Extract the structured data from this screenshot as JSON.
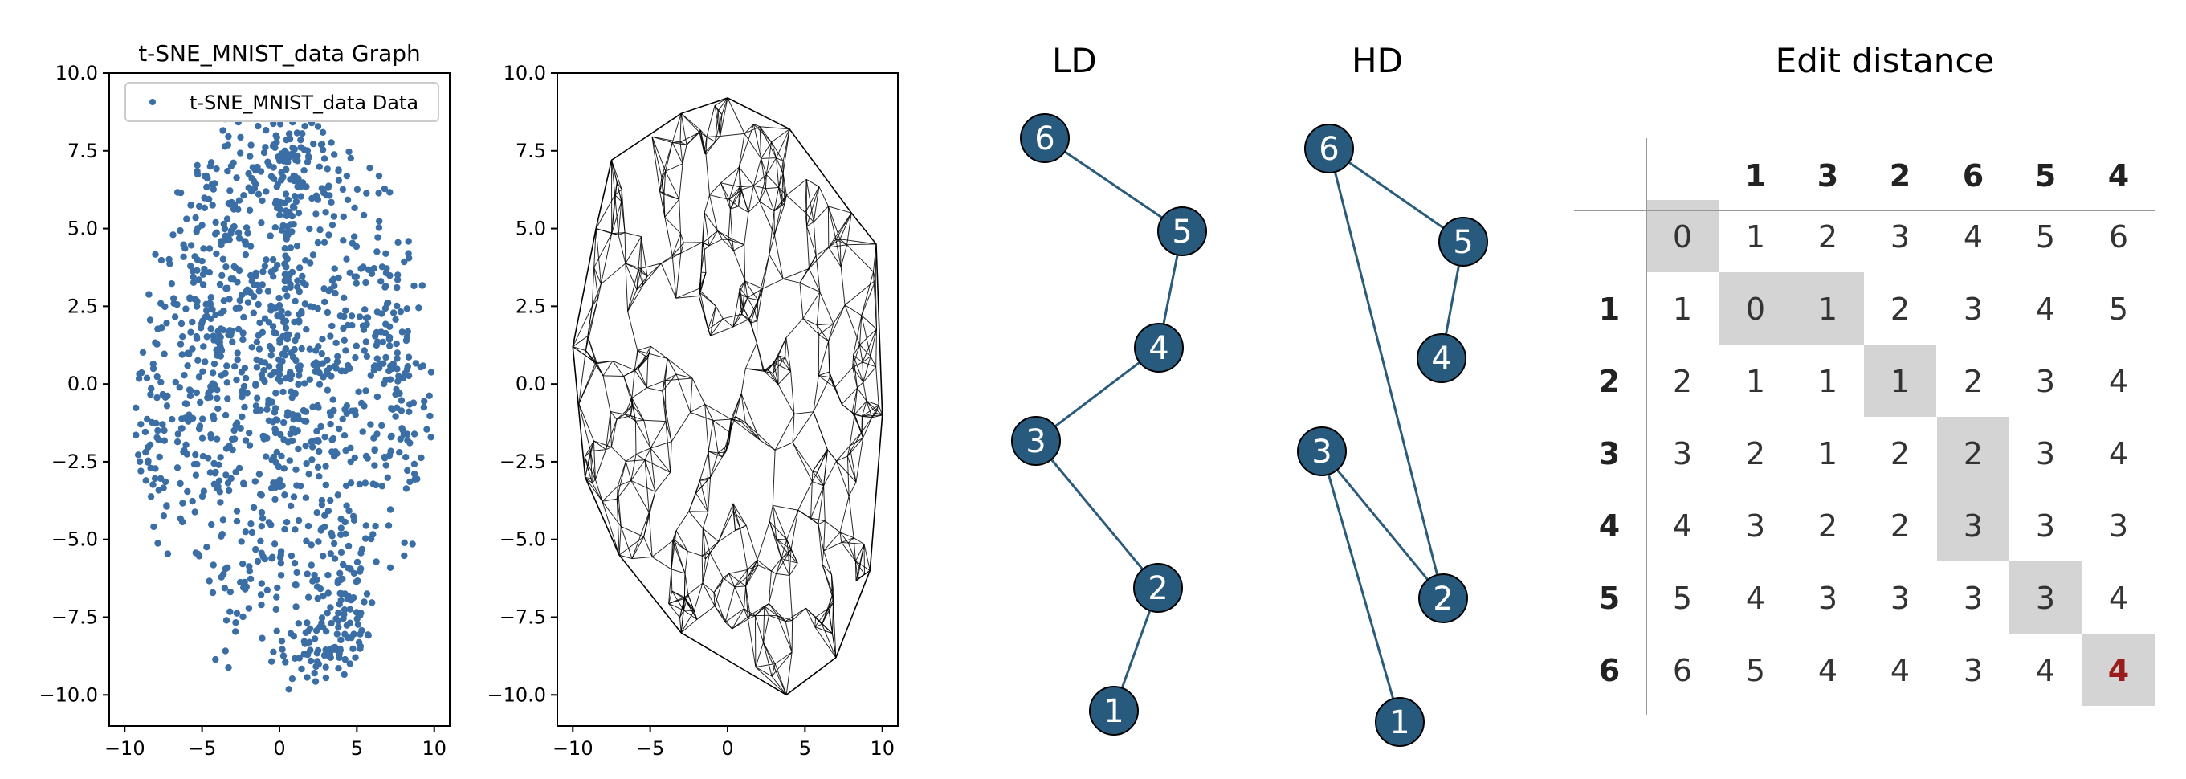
{
  "scatter_panel": {
    "title": "t-SNE_MNIST_data Graph",
    "legend_label": "t-SNE_MNIST_data Data",
    "point_color": "#3a6ea5",
    "xticks": [
      "−10",
      "−5",
      "0",
      "5",
      "10"
    ],
    "yticks": [
      "10.0",
      "7.5",
      "5.0",
      "2.5",
      "0.0",
      "−2.5",
      "−5.0",
      "−7.5",
      "−10.0"
    ]
  },
  "mesh_panel": {
    "line_color": "#000000",
    "xticks": [
      "−10",
      "−5",
      "0",
      "5",
      "10"
    ],
    "yticks": [
      "10.0",
      "7.5",
      "5.0",
      "2.5",
      "0.0",
      "−2.5",
      "−5.0",
      "−7.5",
      "−10.0"
    ]
  },
  "chart_data": [
    {
      "type": "scatter",
      "title": "t-SNE_MNIST_data Graph",
      "series": [
        {
          "name": "t-SNE_MNIST_data Data"
        }
      ],
      "xlim": [
        -11,
        11
      ],
      "ylim": [
        -11,
        10
      ],
      "xticks": [
        -10,
        -5,
        0,
        5,
        10
      ],
      "yticks": [
        10.0,
        7.5,
        5.0,
        2.5,
        0.0,
        -2.5,
        -5.0,
        -7.5,
        -10.0
      ],
      "legend_position": "top",
      "point_cloud_range": {
        "x": [
          -10,
          10
        ],
        "y": [
          -10,
          9
        ]
      }
    },
    {
      "type": "scatter",
      "xlim": [
        -11,
        11
      ],
      "ylim": [
        -11,
        10
      ],
      "xticks": [
        -10,
        -5,
        0,
        5,
        10
      ],
      "yticks": [
        10.0,
        7.5,
        5.0,
        2.5,
        0.0,
        -2.5,
        -5.0,
        -7.5,
        -10.0
      ],
      "hull": [
        [
          0,
          9.2
        ],
        [
          4,
          8.2
        ],
        [
          8,
          5.5
        ],
        [
          9.6,
          4.5
        ],
        [
          10,
          -1
        ],
        [
          9.2,
          -6
        ],
        [
          7,
          -8.8
        ],
        [
          3.8,
          -10
        ],
        [
          -3,
          -8
        ],
        [
          -7,
          -5.5
        ],
        [
          -9.2,
          -3
        ],
        [
          -10,
          1.2
        ],
        [
          -8.5,
          5
        ],
        [
          -7.5,
          7.2
        ],
        [
          -3,
          8.7
        ]
      ]
    }
  ],
  "ld_graph": {
    "title": "LD",
    "node_color": "#285a7d",
    "nodes": [
      {
        "label": "6"
      },
      {
        "label": "5"
      },
      {
        "label": "4"
      },
      {
        "label": "3"
      },
      {
        "label": "2"
      },
      {
        "label": "1"
      }
    ]
  },
  "hd_graph": {
    "title": "HD",
    "node_color": "#285a7d",
    "nodes": [
      {
        "label": "6"
      },
      {
        "label": "5"
      },
      {
        "label": "4"
      },
      {
        "label": "3"
      },
      {
        "label": "2"
      },
      {
        "label": "1"
      }
    ]
  },
  "edit_distance": {
    "title": "Edit distance",
    "highlight_color": "#d4d4d4",
    "final_color": "#9b1c1c",
    "col_headers": [
      "1",
      "3",
      "2",
      "6",
      "5",
      "4"
    ],
    "row_headers": [
      "",
      "1",
      "2",
      "3",
      "4",
      "5",
      "6"
    ],
    "rows": [
      [
        "0",
        "1",
        "2",
        "3",
        "4",
        "5",
        "6"
      ],
      [
        "1",
        "0",
        "1",
        "2",
        "3",
        "4",
        "5"
      ],
      [
        "2",
        "1",
        "1",
        "1",
        "2",
        "3",
        "4"
      ],
      [
        "3",
        "2",
        "1",
        "2",
        "2",
        "3",
        "4"
      ],
      [
        "4",
        "3",
        "2",
        "2",
        "3",
        "3",
        "3"
      ],
      [
        "5",
        "4",
        "3",
        "3",
        "3",
        "3",
        "4"
      ],
      [
        "6",
        "5",
        "4",
        "4",
        "3",
        "4",
        "4"
      ]
    ],
    "highlighted_cells": [
      [
        0,
        0
      ],
      [
        1,
        1
      ],
      [
        1,
        2
      ],
      [
        2,
        3
      ],
      [
        3,
        4
      ],
      [
        4,
        4
      ],
      [
        5,
        5
      ],
      [
        6,
        6
      ]
    ],
    "final_cell": [
      6,
      6
    ]
  }
}
